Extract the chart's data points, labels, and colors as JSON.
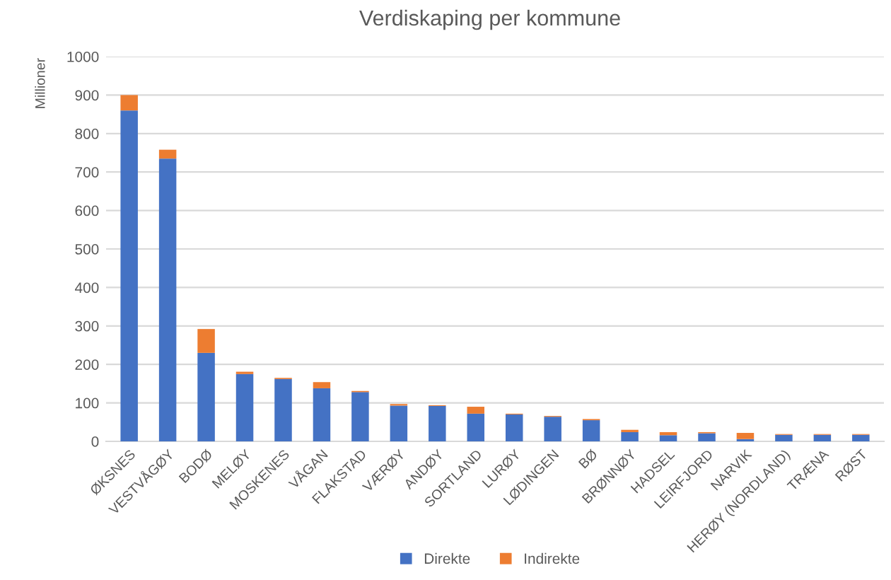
{
  "chart_data": {
    "type": "bar",
    "stacked": true,
    "title": "Verdiskaping per kommune",
    "ylabel": "Millioner",
    "categories": [
      "ØKSNES",
      "VESTVÅGØY",
      "BODØ",
      "MELØY",
      "MOSKENES",
      "VÅGAN",
      "FLAKSTAD",
      "VÆRØY",
      "ANDØY",
      "SORTLAND",
      "LURØY",
      "LØDINGEN",
      "BØ",
      "BRØNNØY",
      "HADSEL",
      "LEIRFJORD",
      "NARVIK",
      "HERØY (NORDLAND)",
      "TRÆNA",
      "RØST"
    ],
    "series": [
      {
        "name": "Direkte",
        "color": "#4472c4",
        "values": [
          860,
          735,
          230,
          175,
          162,
          138,
          128,
          93,
          92,
          72,
          70,
          64,
          55,
          24,
          16,
          21,
          6,
          17,
          17,
          17
        ]
      },
      {
        "name": "Indirekte",
        "color": "#ed7d31",
        "values": [
          40,
          23,
          62,
          6,
          3,
          16,
          3,
          4,
          2,
          18,
          2,
          2,
          3,
          6,
          8,
          3,
          16,
          2,
          2,
          2
        ]
      }
    ],
    "ylim": [
      0,
      1000
    ],
    "yticks": [
      0,
      100,
      200,
      300,
      400,
      500,
      600,
      700,
      800,
      900,
      1000
    ],
    "grid": "y",
    "legend": "bottom"
  }
}
